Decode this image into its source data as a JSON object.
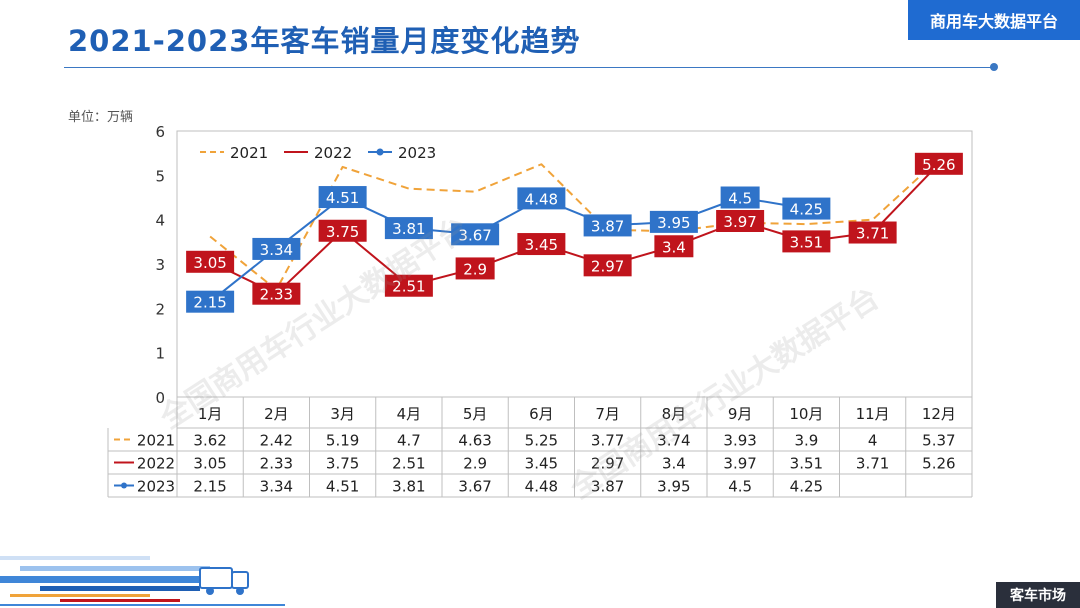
{
  "header": {
    "title": "2021-2023年客车销量月度变化趋势",
    "brand": "商用车大数据平台",
    "unit_label": "单位：万辆",
    "footer_tag": "客车市场",
    "watermark": "全国商用车行业大数据平台"
  },
  "colors": {
    "accent": "#1f5fb4",
    "s2021": "#f0a33a",
    "s2022": "#c0141c",
    "s2023": "#2f73c9"
  },
  "chart_data": {
    "type": "line",
    "title": "2021-2023年客车销量月度变化趋势",
    "ylabel": "单位：万辆",
    "ylim": [
      0,
      6
    ],
    "yticks": [
      "0",
      "1",
      "2",
      "3",
      "4",
      "5",
      "6"
    ],
    "categories": [
      "1月",
      "2月",
      "3月",
      "4月",
      "5月",
      "6月",
      "7月",
      "8月",
      "9月",
      "10月",
      "11月",
      "12月"
    ],
    "legend_position": "top-left",
    "series": [
      {
        "name": "2021",
        "style": "dashed",
        "labeled": false,
        "values": [
          3.62,
          2.42,
          5.19,
          4.7,
          4.63,
          5.25,
          3.77,
          3.74,
          3.93,
          3.9,
          4,
          5.37
        ]
      },
      {
        "name": "2022",
        "style": "solid",
        "labeled": true,
        "values": [
          3.05,
          2.33,
          3.75,
          2.51,
          2.9,
          3.45,
          2.97,
          3.4,
          3.97,
          3.51,
          3.71,
          5.26
        ]
      },
      {
        "name": "2023",
        "style": "solid-marker",
        "labeled": true,
        "values": [
          2.15,
          3.34,
          4.51,
          3.81,
          3.67,
          4.48,
          3.87,
          3.95,
          4.5,
          4.25,
          null,
          null
        ]
      }
    ]
  }
}
